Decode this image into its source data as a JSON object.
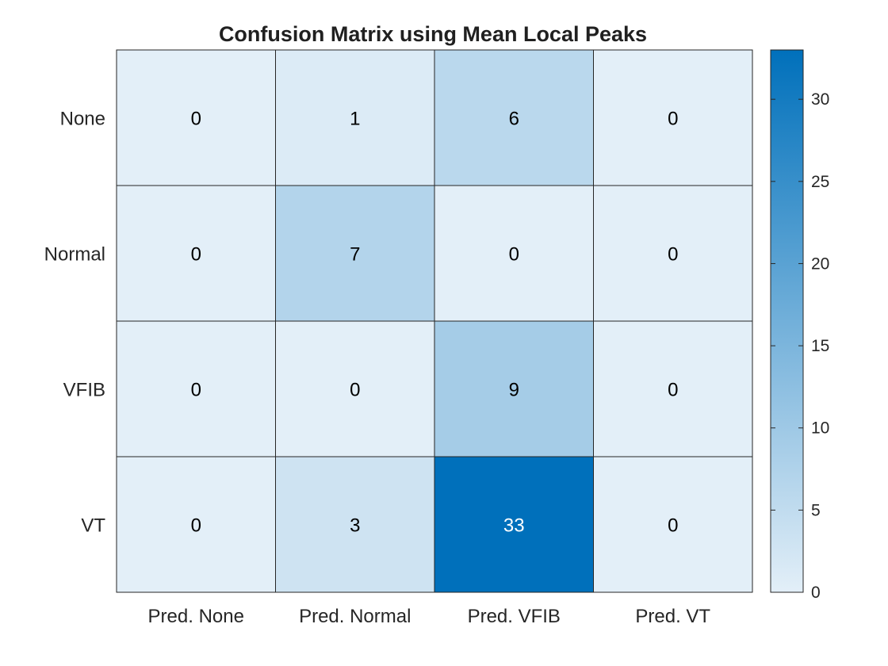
{
  "chart_data": {
    "type": "heatmap",
    "title": "Confusion Matrix using Mean Local Peaks",
    "row_labels": [
      "None",
      "Normal",
      "VFIB",
      "VT"
    ],
    "col_labels": [
      "Pred. None",
      "Pred. Normal",
      "Pred. VFIB",
      "Pred. VT"
    ],
    "values": [
      [
        0,
        1,
        6,
        0
      ],
      [
        0,
        7,
        0,
        0
      ],
      [
        0,
        0,
        9,
        0
      ],
      [
        0,
        3,
        33,
        0
      ]
    ],
    "colorbar": {
      "range": [
        0,
        33
      ],
      "ticks": [
        0,
        5,
        10,
        15,
        20,
        25,
        30
      ],
      "color_low": "#e3eff8",
      "color_high": "#0070bb"
    },
    "text_color_dark": "#000000",
    "text_color_light": "#ffffff"
  }
}
